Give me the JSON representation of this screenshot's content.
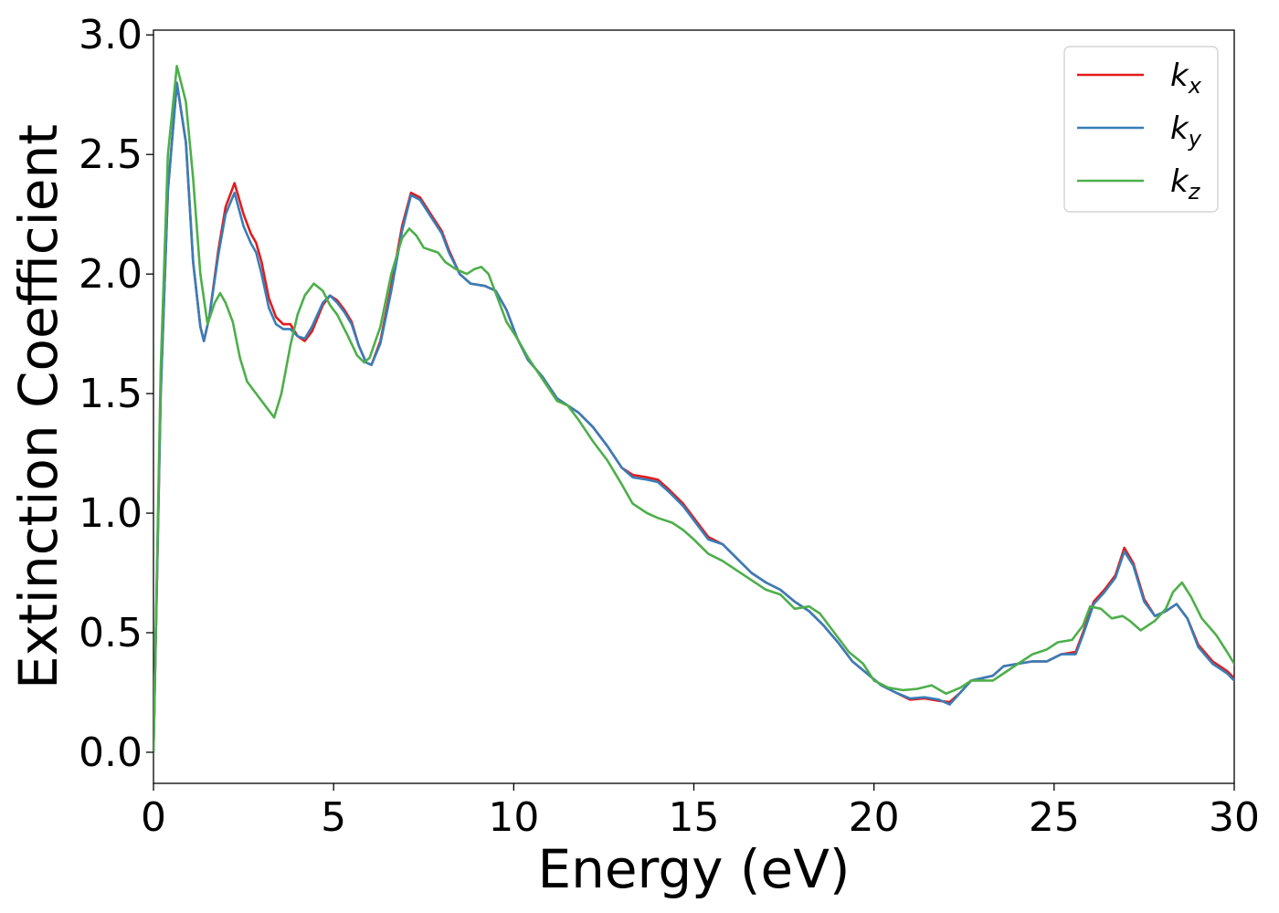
{
  "chart_data": {
    "type": "line",
    "title": "",
    "xlabel": "Energy (eV)",
    "ylabel": "Extinction Coefficient",
    "xlim": [
      0,
      30
    ],
    "ylim": [
      -0.13,
      3.02
    ],
    "xticks": [
      0,
      5,
      10,
      15,
      20,
      25,
      30
    ],
    "xtick_labels": [
      "0",
      "5",
      "10",
      "15",
      "20",
      "25",
      "30"
    ],
    "yticks": [
      0.0,
      0.5,
      1.0,
      1.5,
      2.0,
      2.5,
      3.0
    ],
    "ytick_labels": [
      "0.0",
      "0.5",
      "1.0",
      "1.5",
      "2.0",
      "2.5",
      "3.0"
    ],
    "grid": false,
    "legend_position": "top-right",
    "series": [
      {
        "name": "k_x",
        "base": "k",
        "sub": "x",
        "color": "#e41a1c",
        "points": [
          [
            0,
            0
          ],
          [
            0.2,
            1.5
          ],
          [
            0.4,
            2.35
          ],
          [
            0.65,
            2.8
          ],
          [
            0.9,
            2.55
          ],
          [
            1.1,
            2.05
          ],
          [
            1.3,
            1.78
          ],
          [
            1.4,
            1.72
          ],
          [
            1.55,
            1.82
          ],
          [
            1.8,
            2.1
          ],
          [
            2.0,
            2.28
          ],
          [
            2.25,
            2.38
          ],
          [
            2.5,
            2.25
          ],
          [
            2.7,
            2.17
          ],
          [
            2.85,
            2.13
          ],
          [
            3.0,
            2.05
          ],
          [
            3.2,
            1.9
          ],
          [
            3.4,
            1.82
          ],
          [
            3.6,
            1.79
          ],
          [
            3.8,
            1.79
          ],
          [
            4.0,
            1.74
          ],
          [
            4.2,
            1.72
          ],
          [
            4.4,
            1.76
          ],
          [
            4.7,
            1.87
          ],
          [
            4.9,
            1.91
          ],
          [
            5.1,
            1.89
          ],
          [
            5.3,
            1.85
          ],
          [
            5.5,
            1.8
          ],
          [
            5.7,
            1.7
          ],
          [
            5.9,
            1.63
          ],
          [
            6.05,
            1.62
          ],
          [
            6.3,
            1.72
          ],
          [
            6.6,
            1.95
          ],
          [
            6.9,
            2.2
          ],
          [
            7.15,
            2.34
          ],
          [
            7.4,
            2.32
          ],
          [
            7.7,
            2.25
          ],
          [
            8.0,
            2.18
          ],
          [
            8.2,
            2.1
          ],
          [
            8.5,
            2.0
          ],
          [
            8.8,
            1.96
          ],
          [
            9.2,
            1.95
          ],
          [
            9.5,
            1.93
          ],
          [
            9.8,
            1.85
          ],
          [
            10.1,
            1.73
          ],
          [
            10.4,
            1.64
          ],
          [
            10.8,
            1.57
          ],
          [
            11.2,
            1.48
          ],
          [
            11.5,
            1.45
          ],
          [
            11.8,
            1.42
          ],
          [
            12.2,
            1.36
          ],
          [
            12.6,
            1.28
          ],
          [
            13.0,
            1.19
          ],
          [
            13.3,
            1.16
          ],
          [
            13.7,
            1.15
          ],
          [
            14.0,
            1.14
          ],
          [
            14.3,
            1.1
          ],
          [
            14.7,
            1.04
          ],
          [
            15.0,
            0.98
          ],
          [
            15.4,
            0.9
          ],
          [
            15.8,
            0.87
          ],
          [
            16.2,
            0.81
          ],
          [
            16.6,
            0.75
          ],
          [
            17.0,
            0.71
          ],
          [
            17.4,
            0.68
          ],
          [
            17.8,
            0.63
          ],
          [
            18.2,
            0.59
          ],
          [
            18.6,
            0.53
          ],
          [
            19.0,
            0.46
          ],
          [
            19.4,
            0.38
          ],
          [
            19.8,
            0.33
          ],
          [
            20.2,
            0.28
          ],
          [
            20.6,
            0.25
          ],
          [
            21.0,
            0.22
          ],
          [
            21.4,
            0.225
          ],
          [
            21.8,
            0.215
          ],
          [
            22.1,
            0.21
          ],
          [
            22.4,
            0.25
          ],
          [
            22.7,
            0.3
          ],
          [
            23.0,
            0.31
          ],
          [
            23.3,
            0.32
          ],
          [
            23.6,
            0.36
          ],
          [
            24.0,
            0.37
          ],
          [
            24.4,
            0.38
          ],
          [
            24.8,
            0.38
          ],
          [
            25.2,
            0.41
          ],
          [
            25.6,
            0.42
          ],
          [
            25.8,
            0.5
          ],
          [
            26.1,
            0.63
          ],
          [
            26.4,
            0.68
          ],
          [
            26.7,
            0.74
          ],
          [
            26.95,
            0.855
          ],
          [
            27.2,
            0.79
          ],
          [
            27.5,
            0.64
          ],
          [
            27.8,
            0.57
          ],
          [
            28.1,
            0.59
          ],
          [
            28.4,
            0.62
          ],
          [
            28.7,
            0.56
          ],
          [
            29.0,
            0.45
          ],
          [
            29.4,
            0.38
          ],
          [
            29.8,
            0.34
          ],
          [
            30.0,
            0.31
          ]
        ]
      },
      {
        "name": "k_y",
        "base": "k",
        "sub": "y",
        "color": "#377eb8",
        "points": [
          [
            0,
            0
          ],
          [
            0.2,
            1.5
          ],
          [
            0.4,
            2.35
          ],
          [
            0.65,
            2.8
          ],
          [
            0.9,
            2.55
          ],
          [
            1.1,
            2.05
          ],
          [
            1.3,
            1.78
          ],
          [
            1.4,
            1.72
          ],
          [
            1.55,
            1.82
          ],
          [
            1.8,
            2.08
          ],
          [
            2.0,
            2.25
          ],
          [
            2.25,
            2.34
          ],
          [
            2.5,
            2.2
          ],
          [
            2.7,
            2.13
          ],
          [
            2.85,
            2.09
          ],
          [
            3.0,
            2.0
          ],
          [
            3.2,
            1.86
          ],
          [
            3.4,
            1.79
          ],
          [
            3.6,
            1.77
          ],
          [
            3.8,
            1.77
          ],
          [
            4.0,
            1.74
          ],
          [
            4.2,
            1.73
          ],
          [
            4.4,
            1.78
          ],
          [
            4.7,
            1.88
          ],
          [
            4.9,
            1.91
          ],
          [
            5.1,
            1.88
          ],
          [
            5.3,
            1.84
          ],
          [
            5.5,
            1.79
          ],
          [
            5.7,
            1.7
          ],
          [
            5.9,
            1.63
          ],
          [
            6.05,
            1.62
          ],
          [
            6.3,
            1.71
          ],
          [
            6.6,
            1.93
          ],
          [
            6.9,
            2.18
          ],
          [
            7.15,
            2.33
          ],
          [
            7.4,
            2.31
          ],
          [
            7.7,
            2.24
          ],
          [
            8.0,
            2.17
          ],
          [
            8.2,
            2.09
          ],
          [
            8.5,
            2.0
          ],
          [
            8.8,
            1.96
          ],
          [
            9.2,
            1.95
          ],
          [
            9.5,
            1.93
          ],
          [
            9.8,
            1.85
          ],
          [
            10.1,
            1.73
          ],
          [
            10.4,
            1.64
          ],
          [
            10.8,
            1.57
          ],
          [
            11.2,
            1.48
          ],
          [
            11.5,
            1.45
          ],
          [
            11.8,
            1.42
          ],
          [
            12.2,
            1.36
          ],
          [
            12.6,
            1.28
          ],
          [
            13.0,
            1.19
          ],
          [
            13.3,
            1.15
          ],
          [
            13.7,
            1.14
          ],
          [
            14.0,
            1.13
          ],
          [
            14.3,
            1.09
          ],
          [
            14.7,
            1.03
          ],
          [
            15.0,
            0.97
          ],
          [
            15.4,
            0.89
          ],
          [
            15.8,
            0.87
          ],
          [
            16.2,
            0.81
          ],
          [
            16.6,
            0.75
          ],
          [
            17.0,
            0.71
          ],
          [
            17.4,
            0.68
          ],
          [
            17.8,
            0.63
          ],
          [
            18.2,
            0.59
          ],
          [
            18.6,
            0.53
          ],
          [
            19.0,
            0.46
          ],
          [
            19.4,
            0.38
          ],
          [
            19.8,
            0.33
          ],
          [
            20.2,
            0.28
          ],
          [
            20.6,
            0.25
          ],
          [
            21.0,
            0.225
          ],
          [
            21.4,
            0.23
          ],
          [
            21.8,
            0.22
          ],
          [
            22.1,
            0.2
          ],
          [
            22.4,
            0.25
          ],
          [
            22.7,
            0.3
          ],
          [
            23.0,
            0.31
          ],
          [
            23.3,
            0.32
          ],
          [
            23.6,
            0.36
          ],
          [
            24.0,
            0.37
          ],
          [
            24.4,
            0.38
          ],
          [
            24.8,
            0.38
          ],
          [
            25.2,
            0.41
          ],
          [
            25.6,
            0.41
          ],
          [
            25.8,
            0.49
          ],
          [
            26.1,
            0.62
          ],
          [
            26.4,
            0.67
          ],
          [
            26.7,
            0.73
          ],
          [
            26.95,
            0.84
          ],
          [
            27.2,
            0.78
          ],
          [
            27.5,
            0.63
          ],
          [
            27.8,
            0.57
          ],
          [
            28.1,
            0.59
          ],
          [
            28.4,
            0.62
          ],
          [
            28.7,
            0.56
          ],
          [
            29.0,
            0.44
          ],
          [
            29.4,
            0.37
          ],
          [
            29.8,
            0.33
          ],
          [
            30.0,
            0.3
          ]
        ]
      },
      {
        "name": "k_z",
        "base": "k",
        "sub": "z",
        "color": "#4daf4a",
        "points": [
          [
            0,
            0
          ],
          [
            0.2,
            1.6
          ],
          [
            0.4,
            2.5
          ],
          [
            0.65,
            2.87
          ],
          [
            0.9,
            2.72
          ],
          [
            1.1,
            2.4
          ],
          [
            1.3,
            2.0
          ],
          [
            1.5,
            1.79
          ],
          [
            1.7,
            1.88
          ],
          [
            1.85,
            1.92
          ],
          [
            2.0,
            1.88
          ],
          [
            2.2,
            1.8
          ],
          [
            2.4,
            1.65
          ],
          [
            2.6,
            1.55
          ],
          [
            2.85,
            1.5
          ],
          [
            3.1,
            1.45
          ],
          [
            3.35,
            1.4
          ],
          [
            3.55,
            1.5
          ],
          [
            3.8,
            1.7
          ],
          [
            4.0,
            1.83
          ],
          [
            4.2,
            1.91
          ],
          [
            4.45,
            1.96
          ],
          [
            4.7,
            1.93
          ],
          [
            4.9,
            1.87
          ],
          [
            5.1,
            1.83
          ],
          [
            5.4,
            1.74
          ],
          [
            5.65,
            1.66
          ],
          [
            5.85,
            1.63
          ],
          [
            6.0,
            1.65
          ],
          [
            6.3,
            1.78
          ],
          [
            6.6,
            2.0
          ],
          [
            6.9,
            2.15
          ],
          [
            7.1,
            2.19
          ],
          [
            7.3,
            2.16
          ],
          [
            7.5,
            2.11
          ],
          [
            7.7,
            2.1
          ],
          [
            7.9,
            2.09
          ],
          [
            8.1,
            2.05
          ],
          [
            8.4,
            2.02
          ],
          [
            8.7,
            2.0
          ],
          [
            8.9,
            2.02
          ],
          [
            9.1,
            2.03
          ],
          [
            9.3,
            2.0
          ],
          [
            9.6,
            1.88
          ],
          [
            9.8,
            1.8
          ],
          [
            10.1,
            1.73
          ],
          [
            10.4,
            1.65
          ],
          [
            10.8,
            1.56
          ],
          [
            11.2,
            1.47
          ],
          [
            11.5,
            1.45
          ],
          [
            11.8,
            1.39
          ],
          [
            12.2,
            1.3
          ],
          [
            12.6,
            1.22
          ],
          [
            13.0,
            1.12
          ],
          [
            13.3,
            1.04
          ],
          [
            13.7,
            1.0
          ],
          [
            14.0,
            0.98
          ],
          [
            14.4,
            0.96
          ],
          [
            14.7,
            0.93
          ],
          [
            15.0,
            0.89
          ],
          [
            15.4,
            0.83
          ],
          [
            15.8,
            0.8
          ],
          [
            16.2,
            0.76
          ],
          [
            16.6,
            0.72
          ],
          [
            17.0,
            0.68
          ],
          [
            17.4,
            0.66
          ],
          [
            17.8,
            0.6
          ],
          [
            18.2,
            0.61
          ],
          [
            18.5,
            0.58
          ],
          [
            18.9,
            0.5
          ],
          [
            19.3,
            0.42
          ],
          [
            19.7,
            0.37
          ],
          [
            20.0,
            0.3
          ],
          [
            20.4,
            0.27
          ],
          [
            20.8,
            0.26
          ],
          [
            21.2,
            0.265
          ],
          [
            21.6,
            0.28
          ],
          [
            22.0,
            0.245
          ],
          [
            22.4,
            0.27
          ],
          [
            22.7,
            0.3
          ],
          [
            23.0,
            0.3
          ],
          [
            23.3,
            0.3
          ],
          [
            23.6,
            0.33
          ],
          [
            24.0,
            0.37
          ],
          [
            24.4,
            0.41
          ],
          [
            24.8,
            0.43
          ],
          [
            25.1,
            0.46
          ],
          [
            25.5,
            0.47
          ],
          [
            25.8,
            0.53
          ],
          [
            26.0,
            0.61
          ],
          [
            26.3,
            0.6
          ],
          [
            26.6,
            0.56
          ],
          [
            26.9,
            0.57
          ],
          [
            27.1,
            0.55
          ],
          [
            27.4,
            0.51
          ],
          [
            27.8,
            0.55
          ],
          [
            28.1,
            0.6
          ],
          [
            28.3,
            0.67
          ],
          [
            28.55,
            0.71
          ],
          [
            28.8,
            0.65
          ],
          [
            29.1,
            0.56
          ],
          [
            29.5,
            0.49
          ],
          [
            29.8,
            0.42
          ],
          [
            30.0,
            0.37
          ]
        ]
      }
    ]
  }
}
